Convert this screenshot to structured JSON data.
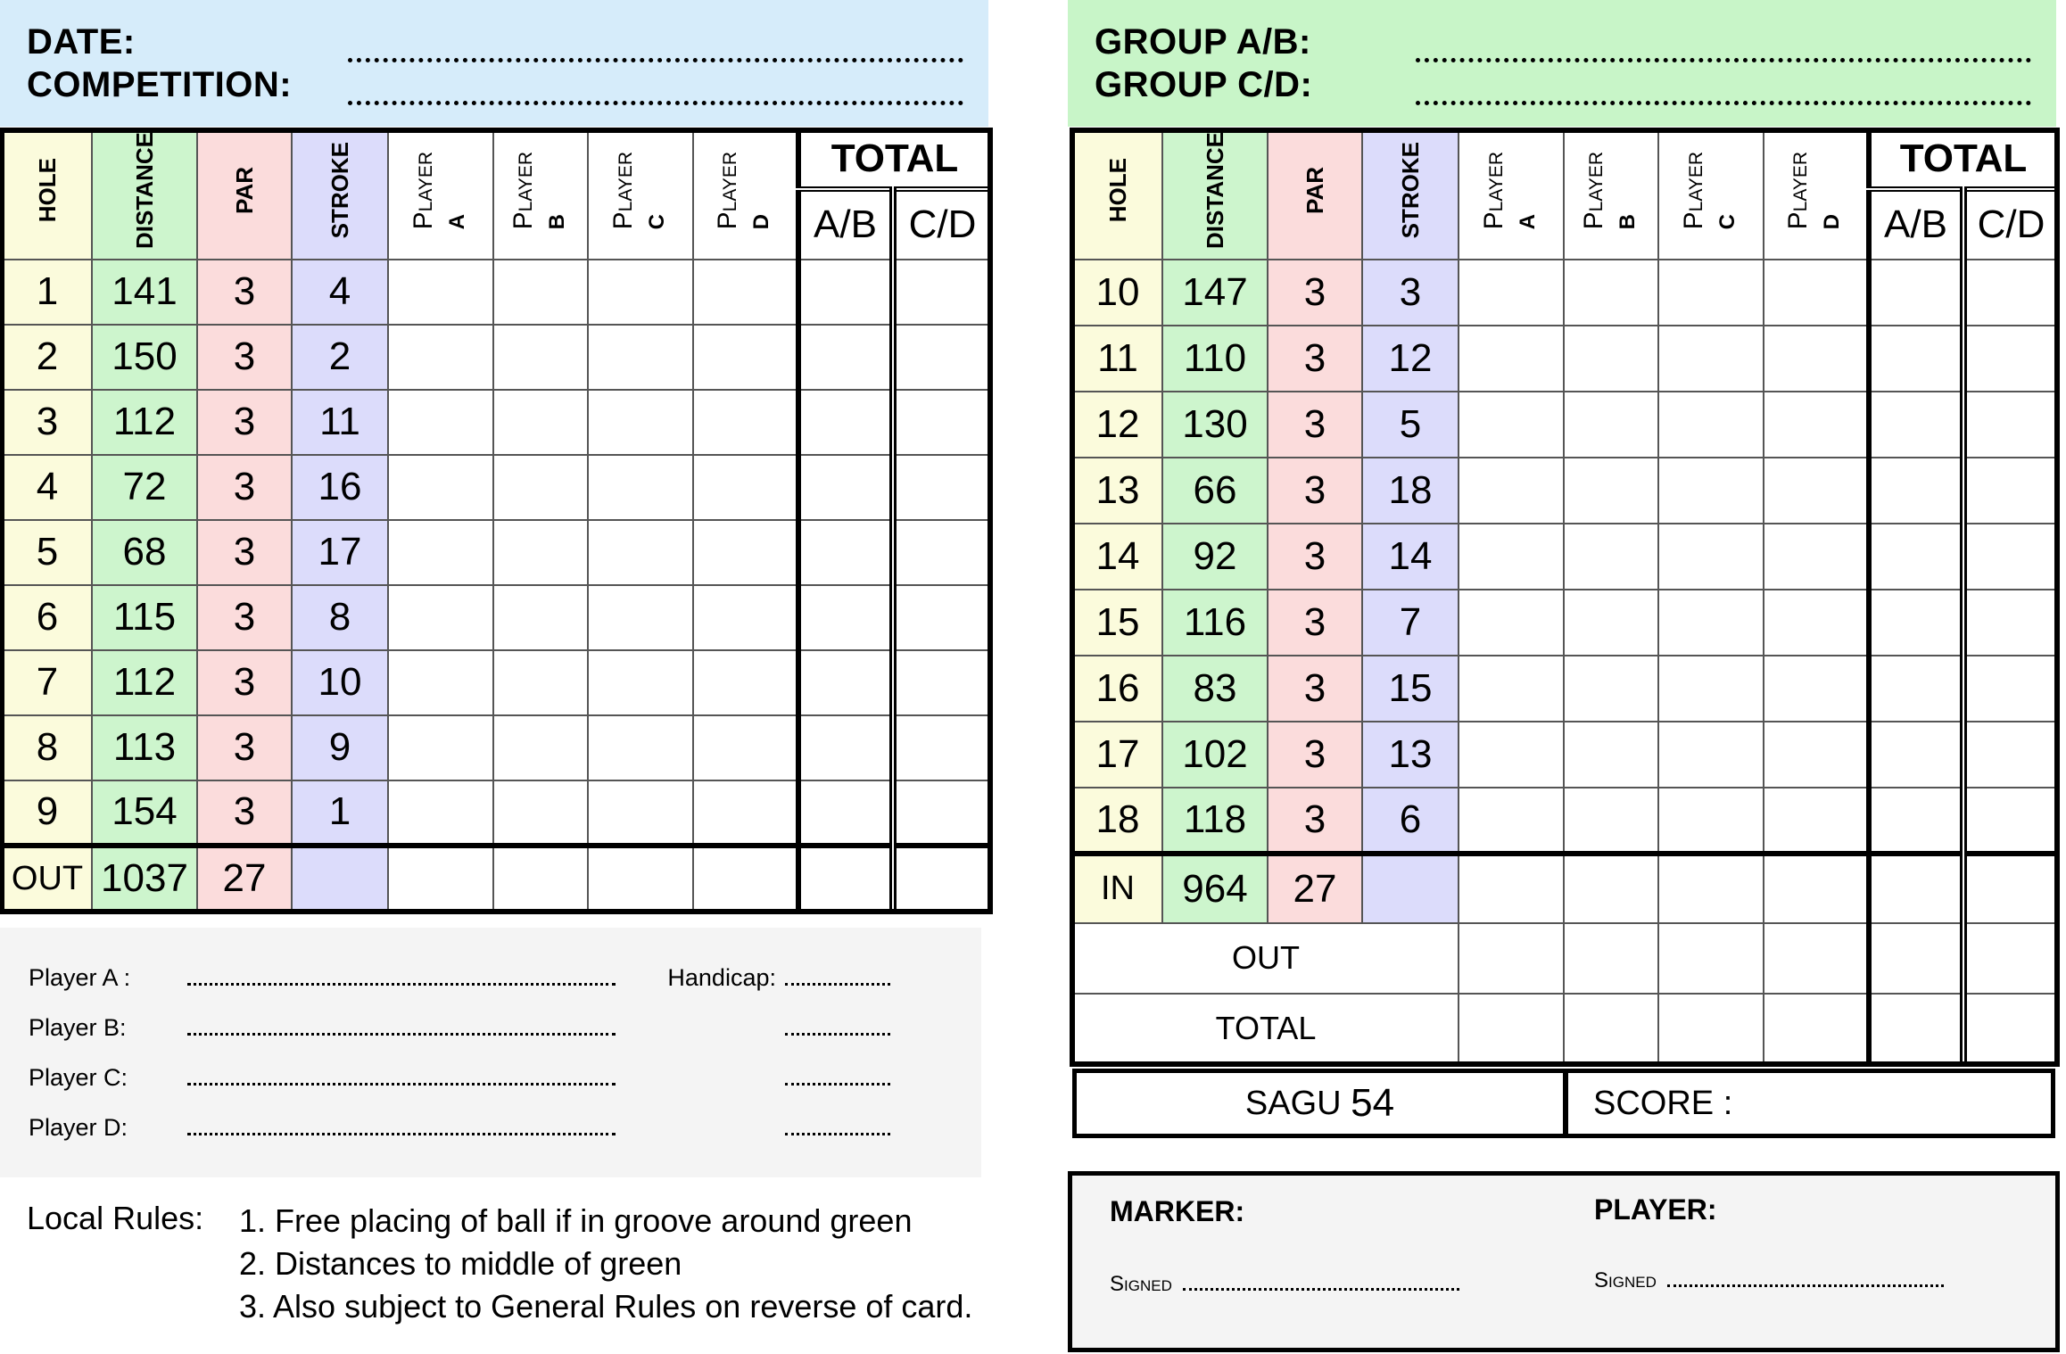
{
  "left_header": {
    "date_label": "DATE:",
    "competition_label": "COMPETITION:"
  },
  "right_header": {
    "group_ab_label": "GROUP A/B:",
    "group_cd_label": "GROUP C/D:"
  },
  "columns": {
    "hole": "HOLE",
    "distance": "DISTANCE",
    "par": "PAR",
    "stroke": "STROKE",
    "player_word": "Player",
    "players": [
      "A",
      "B",
      "C",
      "D"
    ],
    "total": "TOTAL",
    "ab": "A/B",
    "cd": "C/D"
  },
  "front_nine": [
    {
      "hole": "1",
      "distance": "141",
      "par": "3",
      "stroke": "4"
    },
    {
      "hole": "2",
      "distance": "150",
      "par": "3",
      "stroke": "2"
    },
    {
      "hole": "3",
      "distance": "112",
      "par": "3",
      "stroke": "11"
    },
    {
      "hole": "4",
      "distance": "72",
      "par": "3",
      "stroke": "16"
    },
    {
      "hole": "5",
      "distance": "68",
      "par": "3",
      "stroke": "17"
    },
    {
      "hole": "6",
      "distance": "115",
      "par": "3",
      "stroke": "8"
    },
    {
      "hole": "7",
      "distance": "112",
      "par": "3",
      "stroke": "10"
    },
    {
      "hole": "8",
      "distance": "113",
      "par": "3",
      "stroke": "9"
    },
    {
      "hole": "9",
      "distance": "154",
      "par": "3",
      "stroke": "1"
    }
  ],
  "front_total": {
    "label": "OUT",
    "distance": "1037",
    "par": "27"
  },
  "back_nine": [
    {
      "hole": "10",
      "distance": "147",
      "par": "3",
      "stroke": "3"
    },
    {
      "hole": "11",
      "distance": "110",
      "par": "3",
      "stroke": "12"
    },
    {
      "hole": "12",
      "distance": "130",
      "par": "3",
      "stroke": "5"
    },
    {
      "hole": "13",
      "distance": "66",
      "par": "3",
      "stroke": "18"
    },
    {
      "hole": "14",
      "distance": "92",
      "par": "3",
      "stroke": "14"
    },
    {
      "hole": "15",
      "distance": "116",
      "par": "3",
      "stroke": "7"
    },
    {
      "hole": "16",
      "distance": "83",
      "par": "3",
      "stroke": "15"
    },
    {
      "hole": "17",
      "distance": "102",
      "par": "3",
      "stroke": "13"
    },
    {
      "hole": "18",
      "distance": "118",
      "par": "3",
      "stroke": "6"
    }
  ],
  "back_total": {
    "label": "IN",
    "distance": "964",
    "par": "27"
  },
  "summary": {
    "out_label": "OUT",
    "total_label": "TOTAL",
    "sagu_label": "SAGU",
    "sagu_value": "54",
    "score_label": "SCORE :"
  },
  "players_box": {
    "rows": [
      "Player A :",
      "Player B:",
      "Player C:",
      "Player D:"
    ],
    "handicap_label": "Handicap:"
  },
  "local_rules": {
    "label": "Local Rules:",
    "items": [
      "1. Free placing of ball if in groove around green",
      "2. Distances to middle of green",
      "3. Also subject to General Rules on reverse of card."
    ]
  },
  "signatures": {
    "marker_label": "MARKER:",
    "player_label": "PLAYER:",
    "signed_label": "Signed"
  }
}
